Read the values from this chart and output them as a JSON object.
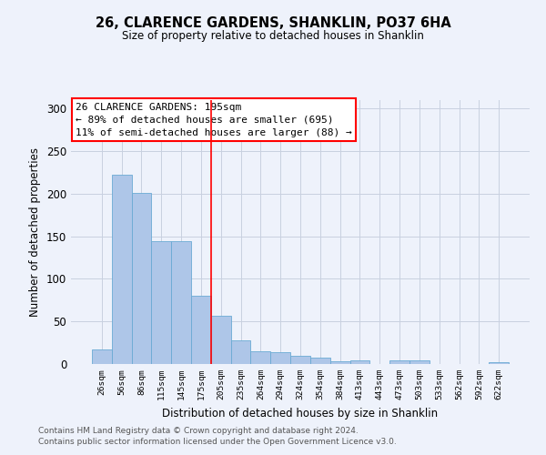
{
  "title": "26, CLARENCE GARDENS, SHANKLIN, PO37 6HA",
  "subtitle": "Size of property relative to detached houses in Shanklin",
  "xlabel": "Distribution of detached houses by size in Shanklin",
  "ylabel": "Number of detached properties",
  "bar_color": "#aec6e8",
  "bar_edge_color": "#6aaad4",
  "categories": [
    "26sqm",
    "56sqm",
    "86sqm",
    "115sqm",
    "145sqm",
    "175sqm",
    "205sqm",
    "235sqm",
    "264sqm",
    "294sqm",
    "324sqm",
    "354sqm",
    "384sqm",
    "413sqm",
    "443sqm",
    "473sqm",
    "503sqm",
    "533sqm",
    "562sqm",
    "592sqm",
    "622sqm"
  ],
  "values": [
    17,
    222,
    201,
    144,
    144,
    80,
    57,
    28,
    15,
    14,
    10,
    8,
    3,
    4,
    0,
    4,
    4,
    0,
    0,
    0,
    2
  ],
  "ylim": [
    0,
    310
  ],
  "yticks": [
    0,
    50,
    100,
    150,
    200,
    250,
    300
  ],
  "red_line_x": 6.0,
  "annotation_text": "26 CLARENCE GARDENS: 195sqm\n← 89% of detached houses are smaller (695)\n11% of semi-detached houses are larger (88) →",
  "footer_line1": "Contains HM Land Registry data © Crown copyright and database right 2024.",
  "footer_line2": "Contains public sector information licensed under the Open Government Licence v3.0.",
  "background_color": "#eef2fb",
  "grid_color": "#c8d0e0"
}
